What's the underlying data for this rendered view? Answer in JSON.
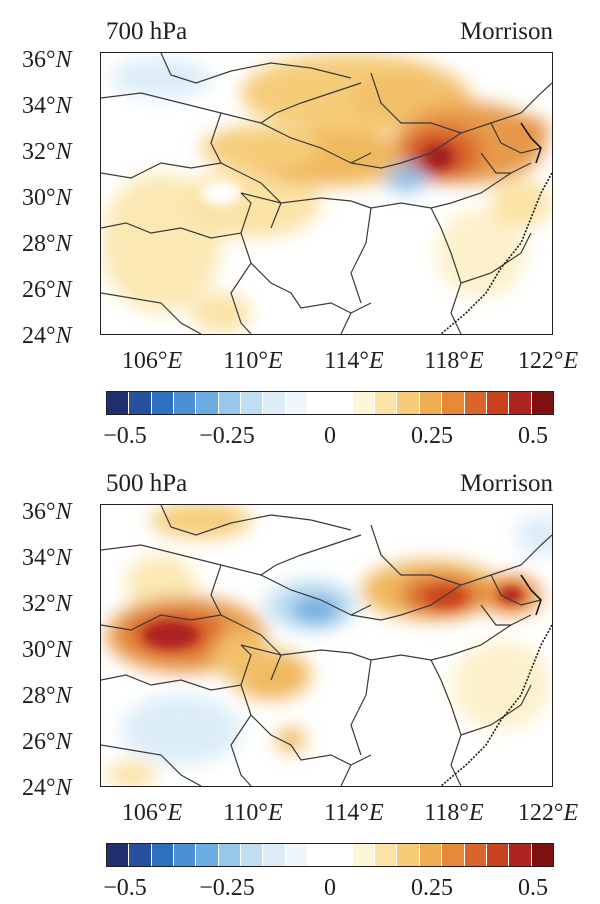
{
  "panels": [
    {
      "level": "700 hPa",
      "scheme": "Morrison",
      "lat_ticks": [
        "36°",
        "34°",
        "32°",
        "30°",
        "28°",
        "26°",
        "24°"
      ],
      "lat_suffix": "N",
      "lon_ticks": [
        "106°",
        "110°",
        "114°",
        "118°",
        "122°"
      ],
      "lon_suffix": "E"
    },
    {
      "level": "500 hPa",
      "scheme": "Morrison",
      "lat_ticks": [
        "36°",
        "34°",
        "32°",
        "30°",
        "28°",
        "26°",
        "24°"
      ],
      "lat_suffix": "N",
      "lon_ticks": [
        "106°",
        "110°",
        "114°",
        "118°",
        "122°"
      ],
      "lon_suffix": "E"
    }
  ],
  "colorbar": {
    "labels": [
      "−0.5",
      "−0.25",
      "0",
      "0.25",
      "0.5"
    ],
    "colors": [
      "#1f2f6e",
      "#264f9c",
      "#2d6fc0",
      "#4a90d2",
      "#6cace0",
      "#97c8ea",
      "#bfdef2",
      "#dcedf8",
      "#f0f7fc",
      "#ffffff",
      "#ffffff",
      "#fdf5d8",
      "#fbe3a6",
      "#f6cc78",
      "#efae54",
      "#e68a3a",
      "#d9652a",
      "#c8421f",
      "#ad2420",
      "#7e1010"
    ]
  }
}
